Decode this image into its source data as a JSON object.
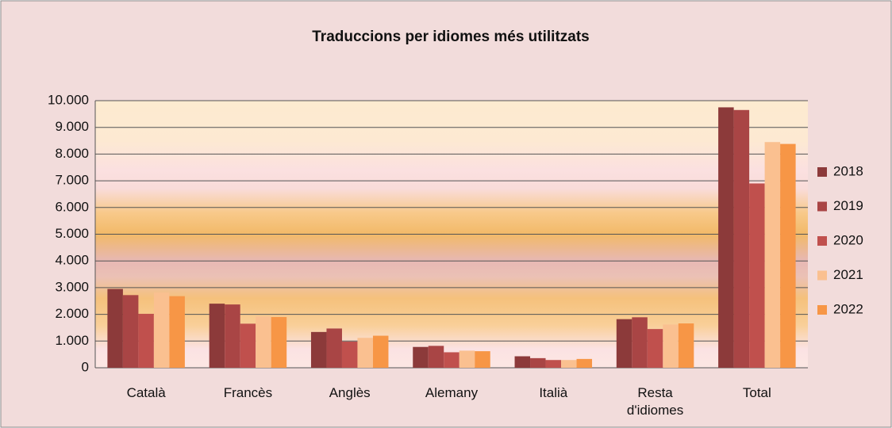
{
  "chart_data": {
    "type": "bar",
    "title": "Traduccions per idiomes més utilitzats",
    "categories": [
      "Català",
      "Francès",
      "Anglès",
      "Alemany",
      "Italià",
      "Resta d'idiomes",
      "Total"
    ],
    "series": [
      {
        "name": "2018",
        "color": "#8c3a3a",
        "values": [
          2950,
          2400,
          1340,
          780,
          430,
          1820,
          9750
        ]
      },
      {
        "name": "2019",
        "color": "#a94545",
        "values": [
          2720,
          2370,
          1470,
          820,
          360,
          1890,
          9650
        ]
      },
      {
        "name": "2020",
        "color": "#c0504d",
        "values": [
          2020,
          1650,
          980,
          580,
          290,
          1450,
          6900
        ]
      },
      {
        "name": "2021",
        "color": "#fac090",
        "values": [
          2820,
          1920,
          1120,
          640,
          290,
          1620,
          8450
        ]
      },
      {
        "name": "2022",
        "color": "#f79646",
        "values": [
          2680,
          1900,
          1200,
          620,
          330,
          1660,
          8380
        ]
      }
    ],
    "ylim": [
      0,
      10000
    ],
    "yticks": [
      0,
      {
        "value": 1000,
        "label": "1.000"
      },
      {
        "value": 2000,
        "label": "2.000"
      },
      {
        "value": 3000,
        "label": "3.000"
      },
      {
        "value": 4000,
        "label": "4.000"
      },
      {
        "value": 5000,
        "label": "5.000"
      },
      {
        "value": 6000,
        "label": "6.000"
      },
      {
        "value": 7000,
        "label": "7.000"
      },
      {
        "value": 8000,
        "label": "8.000"
      },
      {
        "value": 9000,
        "label": "9.000"
      },
      {
        "value": 10000,
        "label": "10.000"
      }
    ],
    "grid": true,
    "legend": "right"
  }
}
